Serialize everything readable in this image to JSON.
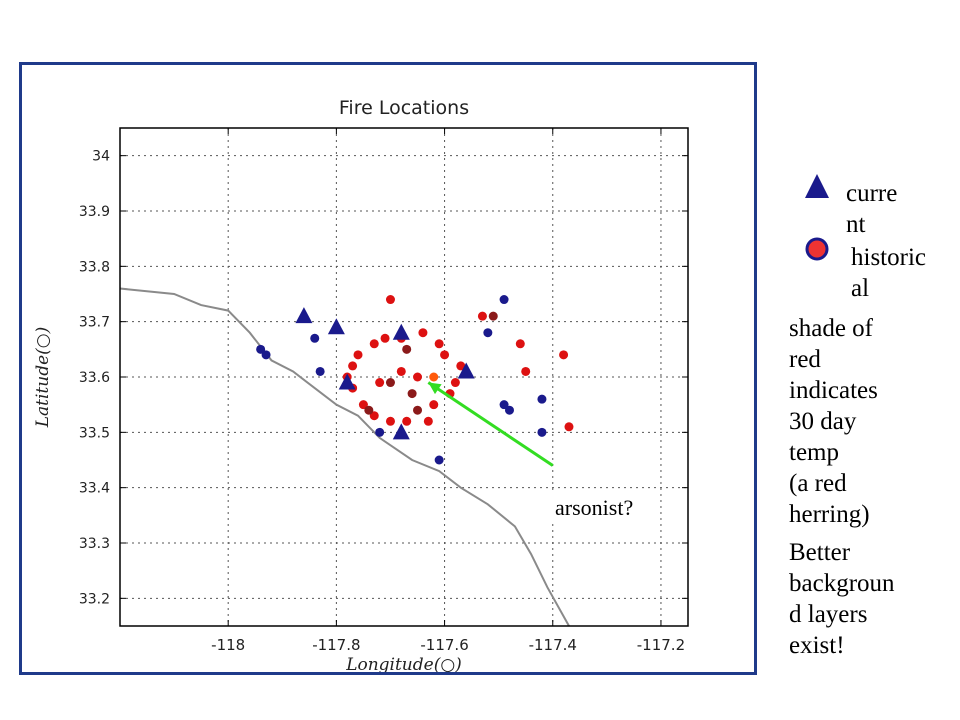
{
  "chart_data": {
    "type": "scatter",
    "title": "Fire Locations",
    "xlabel": "Longitude(○)",
    "ylabel": "Latitude(○)",
    "xlim": [
      -118.2,
      -117.15
    ],
    "ylim": [
      33.15,
      34.05
    ],
    "xticks": [
      -118,
      -117.8,
      -117.6,
      -117.4,
      -117.2
    ],
    "xtick_labels": [
      "-118",
      "-117.8",
      "-117.6",
      "-117.4",
      "-117.2"
    ],
    "yticks": [
      33.2,
      33.3,
      33.4,
      33.5,
      33.6,
      33.7,
      33.8,
      33.9,
      34.0
    ],
    "ytick_labels": [
      "33.2",
      "33.3",
      "33.4",
      "33.5",
      "33.6",
      "33.7",
      "33.8",
      "33.9",
      "34"
    ],
    "grid": true,
    "series": [
      {
        "name": "current",
        "marker": "triangle",
        "color": "#1a1a8c",
        "points": [
          [
            -117.86,
            33.71
          ],
          [
            -117.8,
            33.69
          ],
          [
            -117.68,
            33.68
          ],
          [
            -117.78,
            33.59
          ],
          [
            -117.56,
            33.61
          ],
          [
            -117.68,
            33.5
          ]
        ]
      },
      {
        "name": "historical",
        "marker": "circle",
        "colors": {
          "dark": "#1a1a8c",
          "red": "#dd1111",
          "dark_red": "#8b1a1a",
          "orange": "#ff5a0a"
        },
        "points": [
          [
            -117.94,
            33.65,
            "dark"
          ],
          [
            -117.93,
            33.64,
            "dark"
          ],
          [
            -117.84,
            33.67,
            "dark"
          ],
          [
            -117.83,
            33.61,
            "dark"
          ],
          [
            -117.72,
            33.5,
            "dark"
          ],
          [
            -117.61,
            33.45,
            "dark"
          ],
          [
            -117.52,
            33.68,
            "dark"
          ],
          [
            -117.49,
            33.74,
            "dark"
          ],
          [
            -117.49,
            33.55,
            "dark"
          ],
          [
            -117.48,
            33.54,
            "dark"
          ],
          [
            -117.42,
            33.56,
            "dark"
          ],
          [
            -117.42,
            33.5,
            "dark"
          ],
          [
            -117.7,
            33.74,
            "red"
          ],
          [
            -117.73,
            33.66,
            "red"
          ],
          [
            -117.76,
            33.64,
            "red"
          ],
          [
            -117.77,
            33.62,
            "red"
          ],
          [
            -117.78,
            33.6,
            "red"
          ],
          [
            -117.77,
            33.58,
            "red"
          ],
          [
            -117.75,
            33.55,
            "red"
          ],
          [
            -117.73,
            33.53,
            "red"
          ],
          [
            -117.7,
            33.52,
            "red"
          ],
          [
            -117.67,
            33.52,
            "red"
          ],
          [
            -117.63,
            33.52,
            "red"
          ],
          [
            -117.62,
            33.55,
            "red"
          ],
          [
            -117.59,
            33.57,
            "red"
          ],
          [
            -117.58,
            33.59,
            "red"
          ],
          [
            -117.57,
            33.62,
            "red"
          ],
          [
            -117.6,
            33.64,
            "red"
          ],
          [
            -117.61,
            33.66,
            "red"
          ],
          [
            -117.64,
            33.68,
            "red"
          ],
          [
            -117.68,
            33.67,
            "red"
          ],
          [
            -117.71,
            33.67,
            "red"
          ],
          [
            -117.72,
            33.59,
            "red"
          ],
          [
            -117.68,
            33.61,
            "red"
          ],
          [
            -117.65,
            33.6,
            "red"
          ],
          [
            -117.53,
            33.71,
            "red"
          ],
          [
            -117.46,
            33.66,
            "red"
          ],
          [
            -117.45,
            33.61,
            "red"
          ],
          [
            -117.38,
            33.64,
            "red"
          ],
          [
            -117.37,
            33.51,
            "red"
          ],
          [
            -117.7,
            33.59,
            "dark_red"
          ],
          [
            -117.67,
            33.65,
            "dark_red"
          ],
          [
            -117.66,
            33.57,
            "dark_red"
          ],
          [
            -117.65,
            33.54,
            "dark_red"
          ],
          [
            -117.51,
            33.71,
            "dark_red"
          ],
          [
            -117.74,
            33.54,
            "dark_red"
          ],
          [
            -117.62,
            33.6,
            "orange"
          ]
        ]
      }
    ],
    "coastline": [
      [
        -118.2,
        33.76
      ],
      [
        -118.1,
        33.75
      ],
      [
        -118.05,
        33.73
      ],
      [
        -118.0,
        33.72
      ],
      [
        -117.96,
        33.68
      ],
      [
        -117.92,
        33.63
      ],
      [
        -117.88,
        33.61
      ],
      [
        -117.84,
        33.58
      ],
      [
        -117.8,
        33.55
      ],
      [
        -117.76,
        33.53
      ],
      [
        -117.72,
        33.49
      ],
      [
        -117.66,
        33.45
      ],
      [
        -117.61,
        33.43
      ],
      [
        -117.57,
        33.4
      ],
      [
        -117.52,
        33.37
      ],
      [
        -117.47,
        33.33
      ],
      [
        -117.44,
        33.28
      ],
      [
        -117.41,
        33.22
      ],
      [
        -117.37,
        33.15
      ]
    ]
  },
  "legend": {
    "current": "curre\nnt",
    "historical": "historic\nal",
    "triangle_color": "#1a1a8c",
    "circle_fill": "#ee3333",
    "circle_stroke": "#1a1a8c"
  },
  "notes": {
    "shade": "shade of\nred\nindicates\n30 day\ntemp\n(a red\nherring)",
    "better": "Better\nbackgroun\nd layers\nexist!"
  },
  "annotation": {
    "label": "arsonist?",
    "arrow_color": "#33dd22",
    "from": [
      -117.4,
      33.44
    ],
    "to": [
      -117.63,
      33.59
    ]
  }
}
